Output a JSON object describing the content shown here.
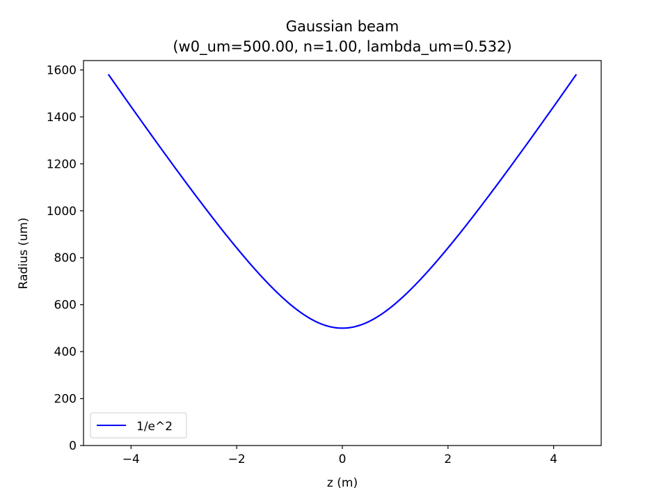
{
  "chart_data": {
    "type": "line",
    "title": "Gaussian beam",
    "subtitle": "(w0_um=500.00, n=1.00, lambda_um=0.532)",
    "xlabel": "z (m)",
    "ylabel": "Radius (um)",
    "xlim": [
      -4.9,
      4.9
    ],
    "ylim": [
      0,
      1640
    ],
    "xticks": [
      -4,
      -2,
      0,
      2,
      4
    ],
    "xtick_labels": [
      "−4",
      "−2",
      "0",
      "2",
      "4"
    ],
    "yticks": [
      0,
      200,
      400,
      600,
      800,
      1000,
      1200,
      1400,
      1600
    ],
    "ytick_labels": [
      "0",
      "200",
      "400",
      "600",
      "800",
      "1000",
      "1200",
      "1400",
      "1600"
    ],
    "grid": false,
    "legend_position": "lower-left",
    "series": [
      {
        "name": "1/e^2",
        "color": "#0000ff",
        "x": [
          -4.43,
          -4.0,
          -3.5,
          -3.0,
          -2.5,
          -2.0,
          -1.5,
          -1.0,
          -0.5,
          0.0,
          0.5,
          1.0,
          1.5,
          2.0,
          2.5,
          3.0,
          3.5,
          4.0,
          4.43
        ],
        "y": [
          1580,
          1438,
          1271,
          1104,
          939,
          776,
          619,
          474,
          541,
          500,
          541,
          474,
          619,
          776,
          939,
          1104,
          1271,
          1438,
          1580
        ]
      }
    ]
  }
}
